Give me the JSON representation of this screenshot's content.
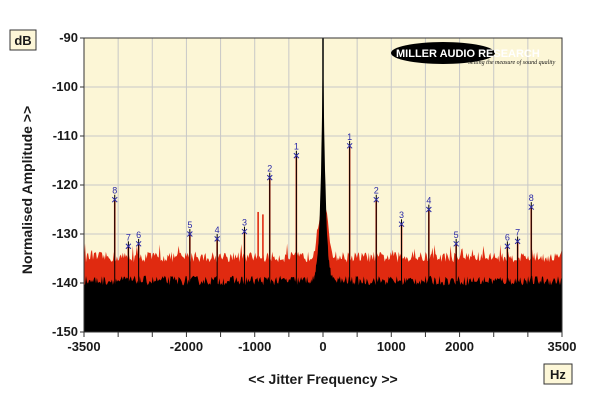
{
  "chart_data": {
    "type": "line",
    "title": "",
    "xlabel": "<< Jitter Frequency >>",
    "ylabel": "Normalised Amplitude >>",
    "x_unit": "Hz",
    "y_unit": "dB",
    "xlim": [
      -3500,
      3500
    ],
    "ylim": [
      -150,
      -90
    ],
    "x_ticks": [
      -3500,
      -2000,
      -1000,
      0,
      1000,
      2000,
      3500
    ],
    "x_minor_ticks": [
      -3000,
      -2500,
      -1500,
      -500,
      500,
      1500,
      2500,
      3000
    ],
    "y_ticks": [
      -90,
      -100,
      -110,
      -120,
      -130,
      -140,
      -150
    ],
    "grid": true,
    "colors": {
      "red_trace": "#e02a10",
      "black_trace": "#000000",
      "plot_background": "#fcf6d6",
      "grid": "#c8c8c8",
      "marker": "#2a2aa8"
    },
    "series": [
      {
        "color": "#e02a10",
        "noise_floor_db": -137,
        "peaks": [
          {
            "label": "8",
            "x": -3050,
            "y": -123
          },
          {
            "label": "7",
            "x": -2850,
            "y": -132.5
          },
          {
            "label": "6",
            "x": -2700,
            "y": -132
          },
          {
            "label": "5",
            "x": -1950,
            "y": -130
          },
          {
            "label": "4",
            "x": -1550,
            "y": -131
          },
          {
            "label": "3",
            "x": -1150,
            "y": -129.5
          },
          {
            "label": "2",
            "x": -780,
            "y": -118.5
          },
          {
            "label": "1",
            "x": -390,
            "y": -114
          },
          {
            "label": "1",
            "x": 390,
            "y": -112
          },
          {
            "label": "2",
            "x": 780,
            "y": -123
          },
          {
            "label": "3",
            "x": 1150,
            "y": -128
          },
          {
            "label": "4",
            "x": 1550,
            "y": -125
          },
          {
            "label": "5",
            "x": 1950,
            "y": -132
          },
          {
            "label": "6",
            "x": 2700,
            "y": -132.5
          },
          {
            "label": "7",
            "x": 2850,
            "y": -131.5
          },
          {
            "label": "8",
            "x": 3050,
            "y": -124.5
          }
        ],
        "extra_spurs": [
          {
            "x": -950,
            "y": -125.5
          },
          {
            "x": -880,
            "y": -126
          }
        ]
      },
      {
        "color": "#000000",
        "noise_floor_db": -141,
        "centre_peak": {
          "x": 0,
          "y": -90
        }
      }
    ]
  },
  "logo": {
    "main": "MILLER AUDIO RESEARCH",
    "sub": "Setting the measure of sound quality"
  }
}
